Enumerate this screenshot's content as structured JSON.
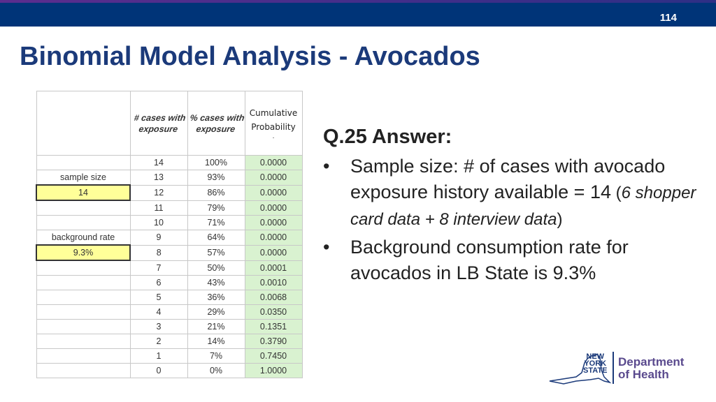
{
  "header": {
    "page_number": "114"
  },
  "title": "Binomial Model Analysis - Avocados",
  "sheet": {
    "col_headers": {
      "cases": "# cases with exposure",
      "pct": "% cases with exposure",
      "cum": "Cumulative Probability",
      "cum_dot": "."
    },
    "side_labels": {
      "sample_size_label": "sample size",
      "sample_size_value": "14",
      "background_rate_label": "background rate",
      "background_rate_value": "9.3%"
    },
    "rows": [
      {
        "cases": "14",
        "pct": "100%",
        "cum": "0.0000"
      },
      {
        "cases": "13",
        "pct": "93%",
        "cum": "0.0000"
      },
      {
        "cases": "12",
        "pct": "86%",
        "cum": "0.0000"
      },
      {
        "cases": "11",
        "pct": "79%",
        "cum": "0.0000"
      },
      {
        "cases": "10",
        "pct": "71%",
        "cum": "0.0000"
      },
      {
        "cases": "9",
        "pct": "64%",
        "cum": "0.0000"
      },
      {
        "cases": "8",
        "pct": "57%",
        "cum": "0.0000"
      },
      {
        "cases": "7",
        "pct": "50%",
        "cum": "0.0001"
      },
      {
        "cases": "6",
        "pct": "43%",
        "cum": "0.0010"
      },
      {
        "cases": "5",
        "pct": "36%",
        "cum": "0.0068"
      },
      {
        "cases": "4",
        "pct": "29%",
        "cum": "0.0350"
      },
      {
        "cases": "3",
        "pct": "21%",
        "cum": "0.1351"
      },
      {
        "cases": "2",
        "pct": "14%",
        "cum": "0.3790"
      },
      {
        "cases": "1",
        "pct": "7%",
        "cum": "0.7450"
      },
      {
        "cases": "0",
        "pct": "0%",
        "cum": "1.0000"
      }
    ]
  },
  "answer": {
    "heading": "Q.25 Answer:",
    "bullet1_main": "Sample size: # of cases with avocado exposure history available = 14",
    "bullet1_paren_open": " (",
    "bullet1_italic": "6 shopper card data + 8 interview data",
    "bullet1_paren_close": ")",
    "bullet2": "Background consumption rate for avocados in LB State is 9.3%"
  },
  "logo": {
    "state_line1": "NEW",
    "state_line2": "YORK",
    "state_line3": "STATE",
    "dept_line1": "Department",
    "dept_line2": "of Health"
  },
  "colors": {
    "header_bar": "#003478",
    "title": "#1b3a7a",
    "highlight_yellow": "#ffff99",
    "highlight_green": "#d9f2d0"
  }
}
